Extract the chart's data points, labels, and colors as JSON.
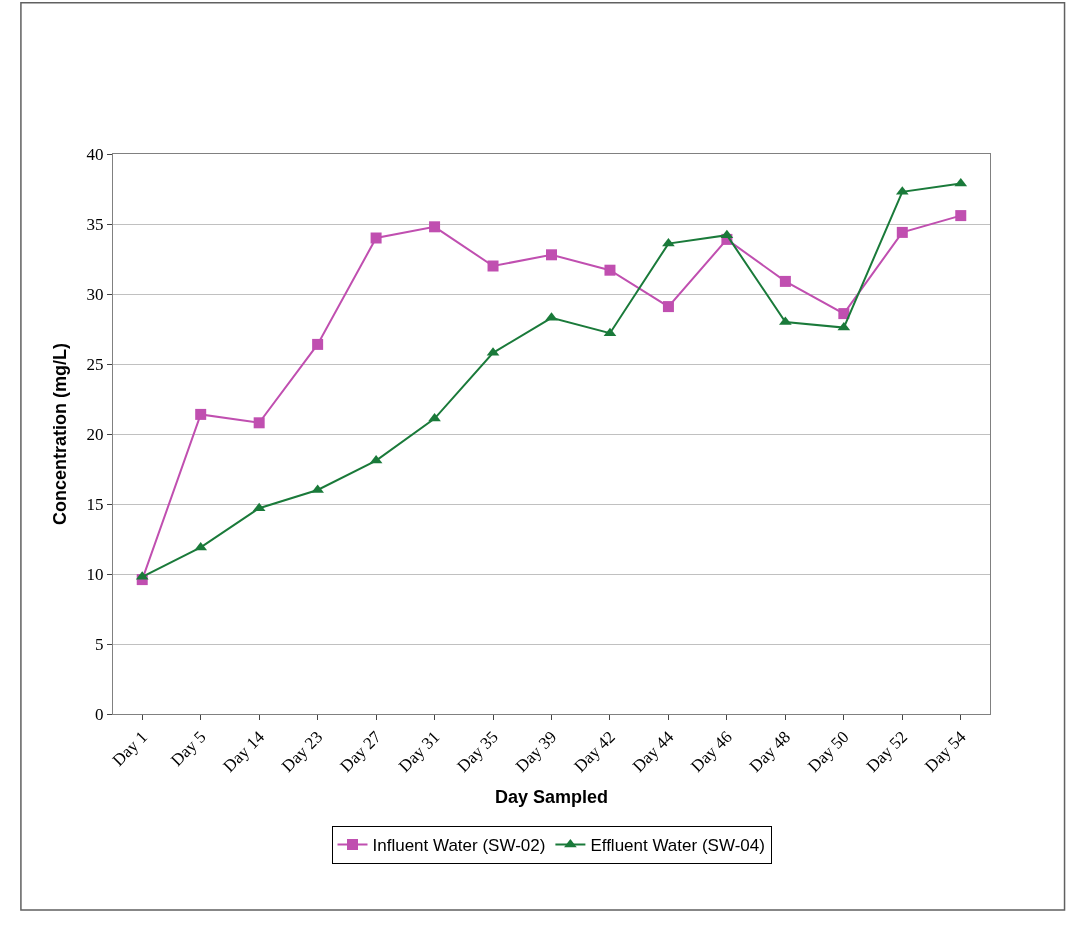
{
  "chart_data": {
    "type": "line",
    "xlabel": "Day Sampled",
    "ylabel": "Concentration (mg/L)",
    "categories": [
      "Day 1",
      "Day 5",
      "Day 14",
      "Day 23",
      "Day 27",
      "Day 31",
      "Day 35",
      "Day 39",
      "Day 42",
      "Day 44",
      "Day 46",
      "Day 48",
      "Day 50",
      "Day 52",
      "Day 54"
    ],
    "series": [
      {
        "name": "Influent Water (SW-02)",
        "color": "#c04fb0",
        "marker": "square",
        "values": [
          9.6,
          21.4,
          20.8,
          26.4,
          34.0,
          34.8,
          32.0,
          32.8,
          31.7,
          29.1,
          33.9,
          30.9,
          28.6,
          34.4,
          35.6
        ]
      },
      {
        "name": "Effluent Water (SW-04)",
        "color": "#1a7a3a",
        "marker": "triangle",
        "values": [
          9.8,
          11.9,
          14.7,
          16.0,
          18.1,
          21.1,
          25.8,
          28.3,
          27.2,
          33.6,
          34.2,
          28.0,
          27.6,
          37.3,
          37.9
        ]
      }
    ],
    "ylim": [
      0,
      40
    ],
    "yticks": [
      0,
      5,
      10,
      15,
      20,
      25,
      30,
      35,
      40
    ],
    "grid": "y",
    "legend": "bottom",
    "line_style": "solid"
  }
}
